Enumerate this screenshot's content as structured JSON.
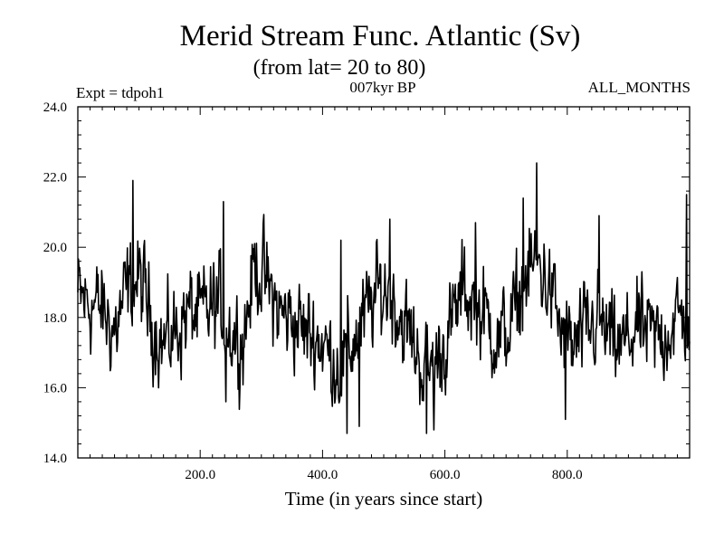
{
  "chart_data": {
    "type": "line",
    "title": "Merid Stream Func. Atlantic (Sv)",
    "subtitle": "(from lat= 20 to 80)",
    "left_label": "Expt = tdpoh1",
    "center_label": "007kyr BP",
    "right_label": "ALL_MONTHS",
    "xlabel": "Time (in years since start)",
    "ylabel": "",
    "xlim": [
      0,
      1000
    ],
    "ylim": [
      14.0,
      24.0
    ],
    "x_ticks": [
      200,
      400,
      600,
      800
    ],
    "x_tick_labels": [
      "200.0",
      "400.0",
      "600.0",
      "800.0"
    ],
    "y_ticks": [
      14,
      16,
      18,
      20,
      22,
      24
    ],
    "y_tick_labels": [
      "14.0",
      "16.0",
      "18.0",
      "20.0",
      "22.0",
      "24.0"
    ],
    "grid": false,
    "series": [
      {
        "name": "Merid Stream Func.",
        "color": "#000000",
        "segments": [
          [
            0,
            18.6
          ],
          [
            40,
            18.2
          ],
          [
            60,
            17.6
          ],
          [
            80,
            18.7
          ],
          [
            100,
            19.1
          ],
          [
            120,
            18.0
          ],
          [
            140,
            17.2
          ],
          [
            160,
            17.6
          ],
          [
            180,
            18.2
          ],
          [
            200,
            18.0
          ],
          [
            230,
            18.4
          ],
          [
            250,
            17.6
          ],
          [
            270,
            17.4
          ],
          [
            290,
            19.6
          ],
          [
            310,
            18.9
          ],
          [
            330,
            18.1
          ],
          [
            350,
            18.0
          ],
          [
            370,
            17.6
          ],
          [
            390,
            17.5
          ],
          [
            410,
            17.0
          ],
          [
            430,
            16.6
          ],
          [
            450,
            17.3
          ],
          [
            470,
            18.0
          ],
          [
            490,
            18.7
          ],
          [
            510,
            18.8
          ],
          [
            530,
            17.9
          ],
          [
            550,
            17.2
          ],
          [
            570,
            16.4
          ],
          [
            590,
            16.9
          ],
          [
            610,
            17.7
          ],
          [
            630,
            18.8
          ],
          [
            650,
            18.4
          ],
          [
            670,
            17.9
          ],
          [
            690,
            17.3
          ],
          [
            710,
            17.9
          ],
          [
            730,
            19.0
          ],
          [
            750,
            19.6
          ],
          [
            770,
            18.9
          ],
          [
            790,
            17.6
          ],
          [
            810,
            17.1
          ],
          [
            830,
            17.5
          ],
          [
            850,
            17.9
          ],
          [
            870,
            17.3
          ],
          [
            890,
            17.1
          ],
          [
            910,
            17.7
          ],
          [
            930,
            17.5
          ],
          [
            950,
            17.4
          ],
          [
            970,
            17.8
          ],
          [
            990,
            18.0
          ],
          [
            1000,
            17.8
          ]
        ],
        "noise_amplitude": 1.1,
        "extremes": [
          {
            "x": 90,
            "y": 21.9
          },
          {
            "x": 238,
            "y": 21.3
          },
          {
            "x": 242,
            "y": 15.6
          },
          {
            "x": 440,
            "y": 14.7
          },
          {
            "x": 460,
            "y": 14.9
          },
          {
            "x": 570,
            "y": 14.7
          },
          {
            "x": 582,
            "y": 14.8
          },
          {
            "x": 750,
            "y": 22.4
          },
          {
            "x": 728,
            "y": 21.4
          },
          {
            "x": 797,
            "y": 15.1
          },
          {
            "x": 852,
            "y": 20.9
          },
          {
            "x": 995,
            "y": 21.5
          },
          {
            "x": 510,
            "y": 20.8
          },
          {
            "x": 650,
            "y": 20.7
          },
          {
            "x": 430,
            "y": 20.2
          }
        ]
      }
    ]
  }
}
